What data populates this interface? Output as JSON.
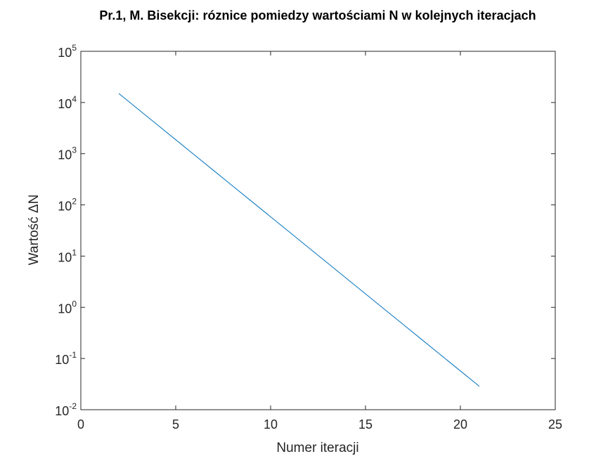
{
  "chart_data": {
    "type": "line",
    "title": "Pr.1, M. Bisekcji: róznice pomiedzy wartościami N w kolejnych iteracjach",
    "xlabel": "Numer iteracji",
    "ylabel": "Wartość ΔN",
    "xlim": [
      0,
      25
    ],
    "ylim": [
      0.01,
      100000
    ],
    "yscale": "log",
    "grid": false,
    "legend": "none",
    "x_ticks": [
      "0",
      "5",
      "10",
      "15",
      "20",
      "25"
    ],
    "y_ticks": [
      {
        "base": "10",
        "exp": "-2"
      },
      {
        "base": "10",
        "exp": "-1"
      },
      {
        "base": "10",
        "exp": "0"
      },
      {
        "base": "10",
        "exp": "1"
      },
      {
        "base": "10",
        "exp": "2"
      },
      {
        "base": "10",
        "exp": "3"
      },
      {
        "base": "10",
        "exp": "4"
      },
      {
        "base": "10",
        "exp": "5"
      }
    ],
    "series": [
      {
        "color": "#0072bd",
        "x": [
          2,
          3,
          4,
          5,
          6,
          7,
          8,
          9,
          10,
          11,
          12,
          13,
          14,
          15,
          16,
          17,
          18,
          19,
          20,
          21
        ],
        "y": [
          15000,
          7500,
          3750,
          1875,
          937.5,
          468.75,
          234.375,
          117.1875,
          58.59375,
          29.296875,
          14.6484375,
          7.32421875,
          3.662109375,
          1.8310546875,
          0.91552734375,
          0.457763671875,
          0.2288818359375,
          0.11444091796875,
          0.057220458984375,
          0.0286102294921875
        ]
      }
    ]
  }
}
